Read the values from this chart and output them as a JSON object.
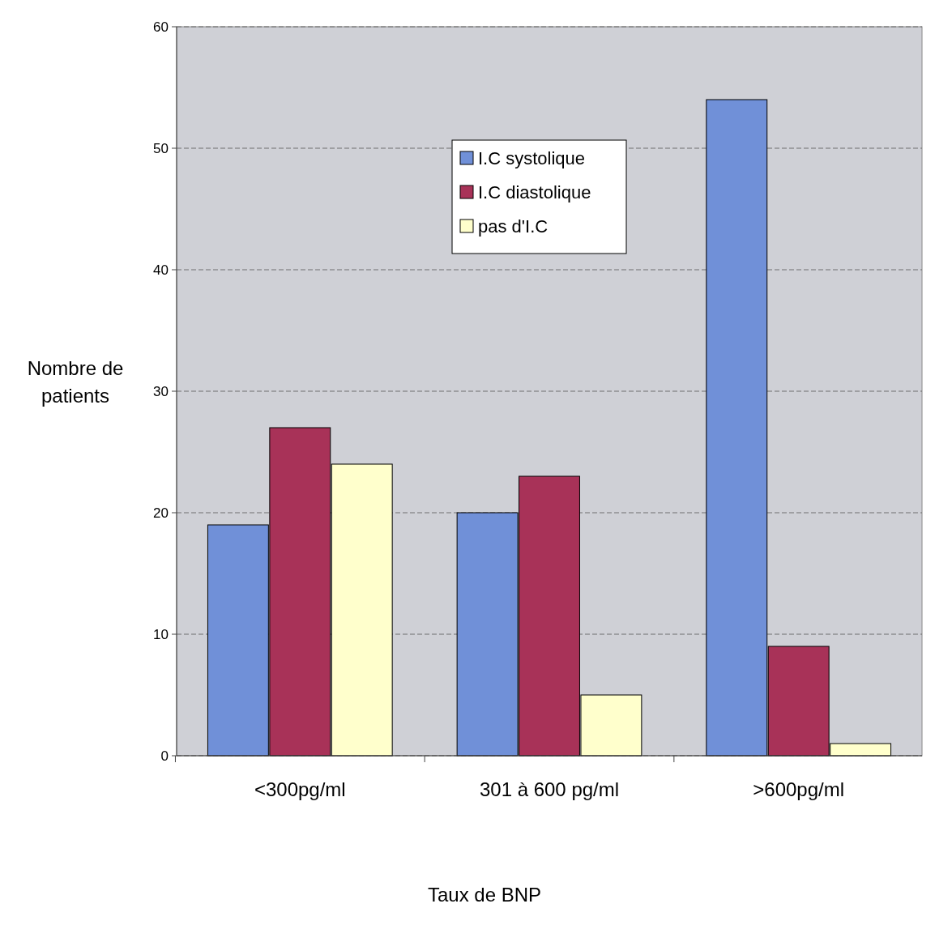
{
  "chart_data": {
    "type": "bar",
    "xlabel": "Taux de BNP",
    "ylabel": "Nombre de patients",
    "categories": [
      "<300pg/ml",
      "301 à 600 pg/ml",
      ">600pg/ml"
    ],
    "series": [
      {
        "name": "I.C systolique",
        "color": "#7090d8",
        "values": [
          19,
          20,
          54
        ]
      },
      {
        "name": "I.C diastolique",
        "color": "#a83258",
        "values": [
          27,
          23,
          9
        ]
      },
      {
        "name": "pas d'I.C",
        "color": "#ffffcc",
        "values": [
          24,
          5,
          1
        ]
      }
    ],
    "ylim": [
      0,
      60
    ],
    "yticks": [
      0,
      10,
      20,
      30,
      40,
      50,
      60
    ],
    "grid": "y",
    "legend": "top"
  }
}
